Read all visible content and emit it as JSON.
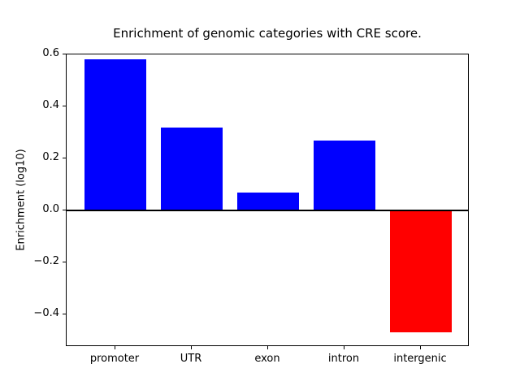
{
  "chart_data": {
    "type": "bar",
    "title": "Enrichment of genomic categories with CRE score.",
    "xlabel": "",
    "ylabel": "Enrichment (log10)",
    "categories": [
      "promoter",
      "UTR",
      "exon",
      "intron",
      "intergenic"
    ],
    "values": [
      0.58,
      0.32,
      0.07,
      0.27,
      -0.47
    ],
    "colors": [
      "#0000ff",
      "#0000ff",
      "#0000ff",
      "#0000ff",
      "#ff0000"
    ],
    "positive_color": "#0000ff",
    "negative_color": "#ff0000",
    "bar_width_ratio": 0.8,
    "ylim": [
      -0.525,
      0.6
    ],
    "yticks": [
      {
        "value": 0.6,
        "label": "0.6"
      },
      {
        "value": 0.4,
        "label": "0.4"
      },
      {
        "value": 0.2,
        "label": "0.2"
      },
      {
        "value": 0.0,
        "label": "0.0"
      },
      {
        "value": -0.2,
        "label": "−0.2"
      },
      {
        "value": -0.4,
        "label": "−0.4"
      }
    ],
    "grid": false,
    "legend": false,
    "zero_line": true,
    "background": "#ffffff"
  }
}
